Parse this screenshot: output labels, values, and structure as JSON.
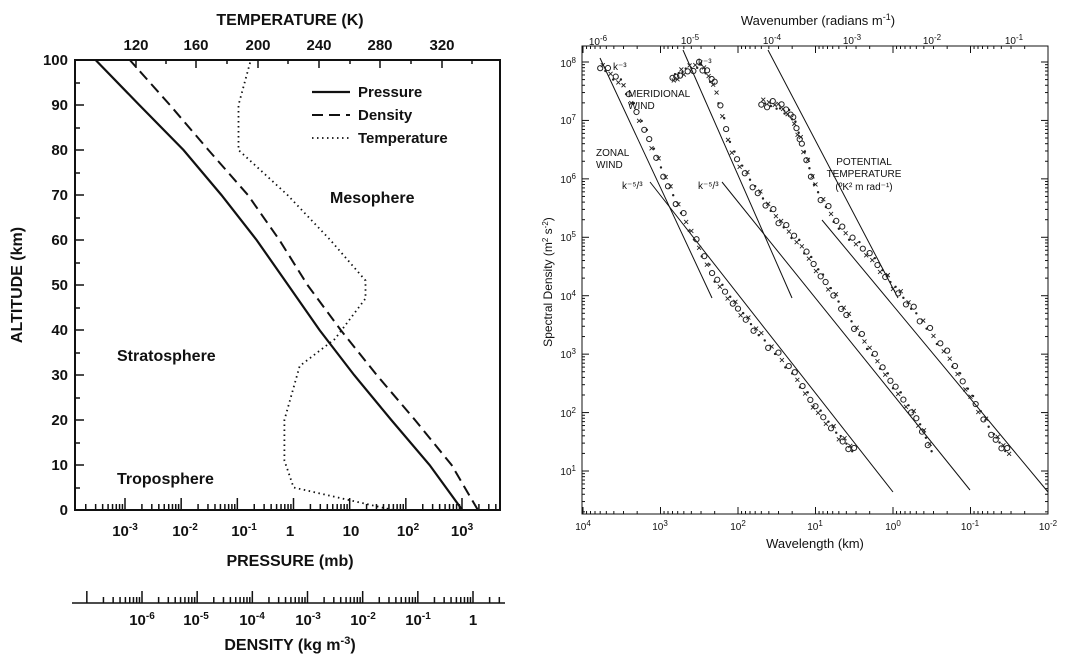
{
  "left_chart": {
    "top_axis_title": "TEMPERATURE (K)",
    "y_axis_title": "ALTITUDE (km)",
    "x_axis_title": "PRESSURE (mb)",
    "density_axis_title": "DENSITY (kg m",
    "density_axis_title_exp": "-3",
    "density_axis_title_end": ")",
    "temp_ticks": [
      "120",
      "160",
      "200",
      "240",
      "280",
      "320"
    ],
    "alt_ticks": [
      "0",
      "10",
      "20",
      "30",
      "40",
      "50",
      "60",
      "70",
      "80",
      "90",
      "100"
    ],
    "pressure_ticks": [
      {
        "base": "10",
        "exp": "-3"
      },
      {
        "base": "10",
        "exp": "-2"
      },
      {
        "base": "10",
        "exp": "-1"
      },
      {
        "base": "1",
        "exp": ""
      },
      {
        "base": "10",
        "exp": ""
      },
      {
        "base": "10",
        "exp": "2"
      },
      {
        "base": "10",
        "exp": "3"
      }
    ],
    "density_ticks": [
      {
        "base": "10",
        "exp": "-6"
      },
      {
        "base": "10",
        "exp": "-5"
      },
      {
        "base": "10",
        "exp": "-4"
      },
      {
        "base": "10",
        "exp": "-3"
      },
      {
        "base": "10",
        "exp": "-2"
      },
      {
        "base": "10",
        "exp": "-1"
      },
      {
        "base": "1",
        "exp": ""
      }
    ],
    "legend": [
      "Pressure",
      "Density",
      "Temperature"
    ],
    "annotations": [
      "Mesophere",
      "Stratosphere",
      "Troposphere"
    ]
  },
  "right_chart": {
    "top_axis_title": "Wavenumber (radians m",
    "top_axis_title_exp": "-1",
    "top_axis_title_end": ")",
    "y_axis_title": "Spectral Density (m",
    "y_axis_title_exp": "2",
    "y_axis_title_mid": " s",
    "y_axis_title_exp2": "-2",
    "y_axis_title_end": ")",
    "x_axis_title": "Wavelength (km)",
    "bottom_ticks": [
      {
        "base": "10",
        "exp": "4"
      },
      {
        "base": "10",
        "exp": "3"
      },
      {
        "base": "10",
        "exp": "2"
      },
      {
        "base": "10",
        "exp": "1"
      },
      {
        "base": "10",
        "exp": "0"
      },
      {
        "base": "10",
        "exp": "-1"
      },
      {
        "base": "10",
        "exp": "-2"
      }
    ],
    "top_ticks": [
      {
        "base": "10",
        "exp": "-6"
      },
      {
        "base": "10",
        "exp": "-5"
      },
      {
        "base": "10",
        "exp": "-4"
      },
      {
        "base": "10",
        "exp": "-3"
      },
      {
        "base": "10",
        "exp": "-2"
      },
      {
        "base": "10",
        "exp": "-1"
      }
    ],
    "left_ticks": [
      {
        "base": "10",
        "exp": "8"
      },
      {
        "base": "10",
        "exp": "7"
      },
      {
        "base": "10",
        "exp": "6"
      },
      {
        "base": "10",
        "exp": "5"
      },
      {
        "base": "10",
        "exp": "4"
      },
      {
        "base": "10",
        "exp": "3"
      },
      {
        "base": "10",
        "exp": "2"
      },
      {
        "base": "10",
        "exp": "1"
      }
    ],
    "labels": {
      "zonal_1": "ZONAL",
      "zonal_2": "WIND",
      "meridional_1": "MERIDIONAL",
      "meridional_2": "WIND",
      "potential_1": "POTENTIAL",
      "potential_2": "TEMPERATURE",
      "potential_3": "(ºK² m rad⁻¹)",
      "k3_a": "k⁻³",
      "k3_b": "k⁻³",
      "k53_a": "k⁻⁵/³",
      "k53_b": "k⁻⁵/³"
    }
  },
  "chart_data": [
    {
      "type": "line",
      "y_axis": {
        "label": "ALTITUDE (km)",
        "range": [
          0,
          100
        ]
      },
      "x_axis_bottom": {
        "label": "PRESSURE (mb)",
        "scale": "log"
      },
      "x_axis_top": {
        "label": "TEMPERATURE (K)",
        "range": [
          120,
          320
        ]
      },
      "x_axis_extra": {
        "label": "DENSITY (kg m-3)",
        "scale": "log"
      },
      "series": [
        {
          "name": "Pressure",
          "style": "solid",
          "x_pressure_mb": [
            1013,
            265,
            55,
            12,
            2.9,
            0.8,
            0.22,
            0.052,
            0.011,
            0.0018,
            0.0003
          ],
          "altitude_km": [
            0,
            10,
            20,
            30,
            40,
            50,
            60,
            70,
            80,
            90,
            100
          ]
        },
        {
          "name": "Density",
          "style": "dashed",
          "x_density_kg_m3": [
            1.225,
            0.41,
            0.089,
            0.018,
            0.004,
            0.001,
            0.00031,
            8.3e-05,
            1.6e-05,
            3.2e-06,
            6e-07
          ],
          "altitude_km": [
            0,
            10,
            20,
            30,
            40,
            50,
            60,
            70,
            80,
            90,
            100
          ]
        },
        {
          "name": "Temperature",
          "style": "dotted",
          "x_temperature_K": [
            288,
            223,
            217,
            217,
            227,
            250,
            270,
            270,
            247,
            219,
            187,
            187,
            195
          ],
          "altitude_km": [
            0,
            5,
            11,
            20,
            32,
            38,
            47,
            51,
            60,
            70,
            80,
            90,
            100
          ]
        }
      ],
      "annotations": [
        "Mesophere",
        "Stratosphere",
        "Troposphere"
      ]
    },
    {
      "type": "scatter",
      "x_axis": {
        "label": "Wavelength (km)",
        "scale": "log",
        "range": [
          10000,
          0.01
        ]
      },
      "x_axis_top": {
        "label": "Wavenumber (radians m-1)",
        "scale": "log"
      },
      "y_axis": {
        "label": "Spectral Density (m2 s-2)",
        "scale": "log",
        "range": [
          3,
          150000000
        ]
      },
      "series": [
        {
          "name": "ZONAL WIND",
          "wavelength_km": [
            6000,
            3000,
            1500,
            800,
            400,
            200,
            100,
            50,
            20,
            10,
            5,
            3
          ],
          "spectral_density": [
            90000000,
            40000000,
            6000000,
            800000,
            120000,
            20000,
            6000,
            2000,
            500,
            120,
            40,
            20
          ]
        },
        {
          "name": "MERIDIONAL WIND",
          "wavelength_km": [
            700,
            500,
            300,
            200,
            120,
            60,
            30,
            15,
            8,
            4,
            2,
            1,
            0.5,
            0.3
          ],
          "spectral_density": [
            50000000,
            70000000,
            90000000,
            40000000,
            3000000,
            700000,
            200000,
            70000,
            20000,
            5000,
            1200,
            300,
            80,
            20
          ]
        },
        {
          "name": "POTENTIAL TEMPERATURE",
          "wavelength_km": [
            50,
            30,
            20,
            15,
            10,
            5,
            2,
            1,
            0.5,
            0.2,
            0.1,
            0.05,
            0.03
          ],
          "spectral_density": [
            20000000,
            18000000,
            12000000,
            4000000,
            700000,
            150000,
            50000,
            15000,
            5000,
            1000,
            200,
            40,
            18
          ]
        }
      ],
      "reference_lines": [
        "k-3",
        "k-3",
        "k-5/3",
        "k-5/3"
      ]
    }
  ]
}
